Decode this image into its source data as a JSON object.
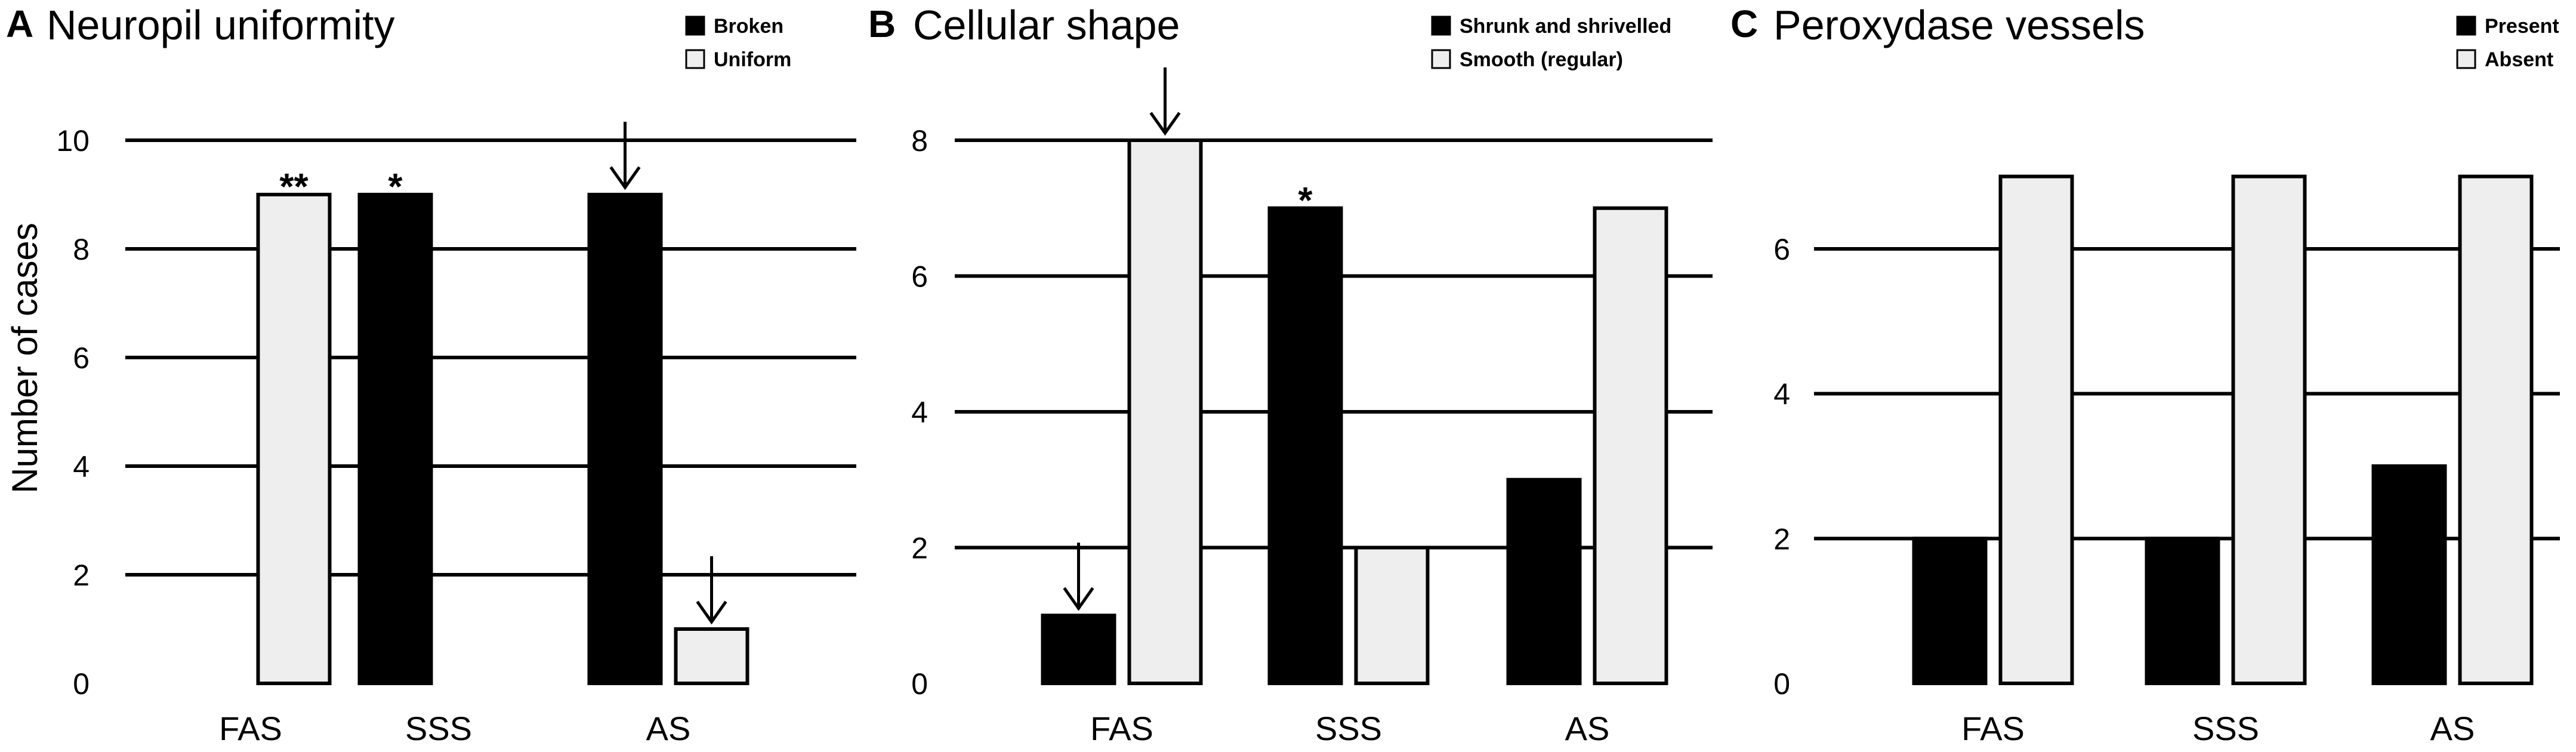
{
  "colors": {
    "dark_series": "#000000",
    "light_series": "#eeeeee",
    "grid": "#000000"
  },
  "chart_data": [
    {
      "type": "bar",
      "panel": "A",
      "title": "Neuropil uniformity",
      "xlabel": "",
      "ylabel": "Number of cases",
      "categories": [
        "FAS",
        "SSS",
        "AS"
      ],
      "series": [
        {
          "name": "Broken",
          "color": "#000000",
          "values": [
            0,
            9,
            9
          ]
        },
        {
          "name": "Uniform",
          "color": "#eeeeee",
          "values": [
            9,
            0,
            1
          ]
        }
      ],
      "ylim": [
        0,
        10
      ],
      "yticks": [
        "0",
        "2",
        "4",
        "6",
        "8",
        "10"
      ],
      "grid": true,
      "legend_position": "top-right",
      "annotations": [
        {
          "category": "FAS",
          "series": "Uniform",
          "mark": "**"
        },
        {
          "category": "SSS",
          "series": "Broken",
          "mark": "*"
        },
        {
          "category": "AS",
          "series": "Broken",
          "mark": "arrow"
        },
        {
          "category": "AS",
          "series": "Uniform",
          "mark": "arrow"
        }
      ]
    },
    {
      "type": "bar",
      "panel": "B",
      "title": "Cellular shape",
      "xlabel": "",
      "ylabel": "",
      "categories": [
        "FAS",
        "SSS",
        "AS"
      ],
      "series": [
        {
          "name": "Shrunk and shrivelled",
          "color": "#000000",
          "values": [
            1,
            7,
            3
          ]
        },
        {
          "name": "Smooth (regular)",
          "color": "#eeeeee",
          "values": [
            8,
            2,
            7
          ]
        }
      ],
      "ylim": [
        0,
        8
      ],
      "yticks": [
        "0",
        "2",
        "4",
        "6",
        "8"
      ],
      "grid": true,
      "legend_position": "top-right",
      "annotations": [
        {
          "category": "FAS",
          "series": "Shrunk and shrivelled",
          "mark": "arrow"
        },
        {
          "category": "FAS",
          "series": "Smooth (regular)",
          "mark": "arrow"
        },
        {
          "category": "SSS",
          "series": "Shrunk and shrivelled",
          "mark": "*"
        }
      ]
    },
    {
      "type": "bar",
      "panel": "C",
      "title": "Peroxydase vessels",
      "xlabel": "",
      "ylabel": "",
      "categories": [
        "FAS",
        "SSS",
        "AS"
      ],
      "series": [
        {
          "name": "Present",
          "color": "#000000",
          "values": [
            2,
            2,
            3
          ]
        },
        {
          "name": "Absent",
          "color": "#eeeeee",
          "values": [
            7,
            7,
            7
          ]
        }
      ],
      "ylim": [
        0,
        7.5
      ],
      "yticks": [
        "0",
        "2",
        "4",
        "6"
      ],
      "grid": true,
      "legend_position": "top-right",
      "annotations": []
    }
  ]
}
